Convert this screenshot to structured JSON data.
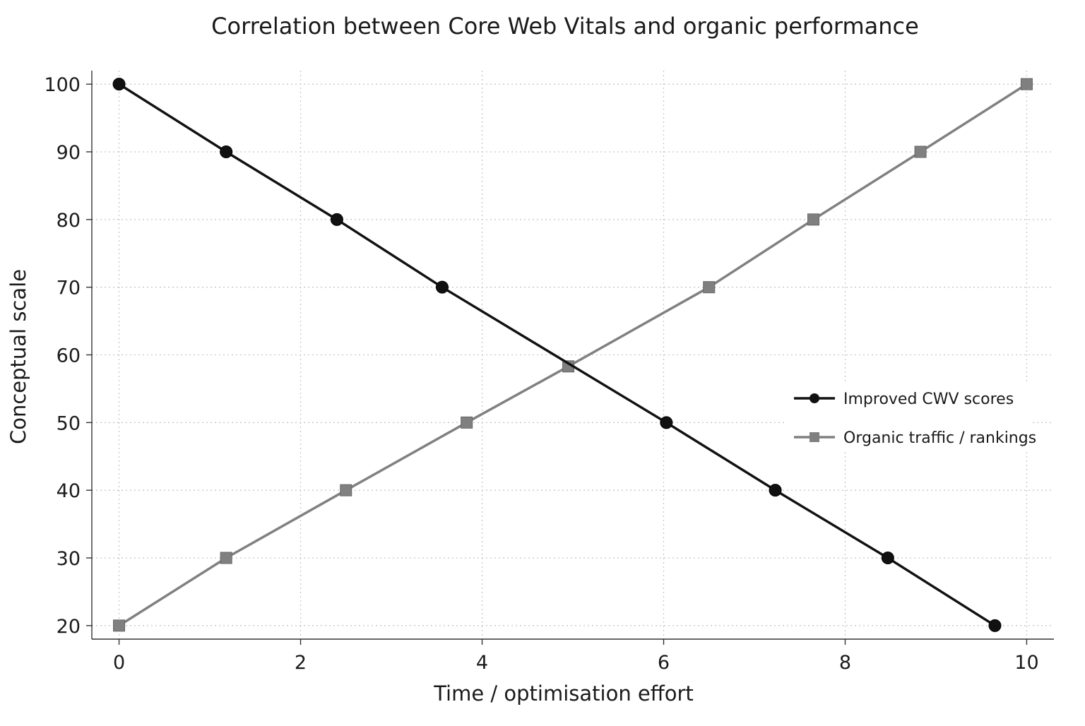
{
  "chart_data": {
    "type": "line",
    "title": "Correlation between Core Web Vitals and organic performance",
    "xlabel": "Time / optimisation effort",
    "ylabel": "Conceptual scale",
    "xlim": [
      -0.3,
      10.3
    ],
    "ylim": [
      18,
      102
    ],
    "xticks": [
      0,
      2,
      4,
      6,
      8,
      10
    ],
    "yticks": [
      20,
      30,
      40,
      50,
      60,
      70,
      80,
      90,
      100
    ],
    "grid": true,
    "legend_position": "right",
    "series": [
      {
        "name": "Improved CWV scores",
        "color": "#111111",
        "marker": "circle",
        "x": [
          0,
          1.18,
          2.4,
          3.56,
          6.03,
          7.23,
          8.47,
          9.65
        ],
        "y": [
          100,
          90,
          80,
          70,
          50,
          40,
          30,
          20
        ]
      },
      {
        "name": "Organic traffic / rankings",
        "color": "#808080",
        "marker": "square",
        "x": [
          0,
          1.18,
          2.5,
          3.83,
          4.95,
          6.5,
          7.65,
          8.83,
          10
        ],
        "y": [
          20,
          30,
          40,
          50,
          58.3,
          70,
          80,
          90,
          100
        ]
      }
    ]
  }
}
